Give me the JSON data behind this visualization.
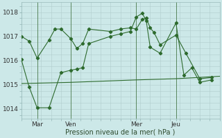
{
  "xlabel": "Pression niveau de la mer( hPa )",
  "background_color": "#cce8e8",
  "grid_color": "#b0cccc",
  "line_color": "#2d6a2d",
  "ylim": [
    1013.6,
    1018.4
  ],
  "xlim": [
    0,
    100
  ],
  "xtick_positions": [
    8,
    25,
    58,
    78
  ],
  "xtick_labels": [
    "Mar",
    "Ven",
    "Mer",
    "Jeu"
  ],
  "ytick_positions": [
    1014,
    1015,
    1016,
    1017,
    1018
  ],
  "vline_positions": [
    8,
    25,
    58,
    78
  ],
  "series1_x": [
    0,
    4,
    8,
    14,
    17,
    20,
    25,
    28,
    31,
    34,
    45,
    50,
    55,
    58,
    61,
    63,
    65,
    67,
    70,
    78,
    83,
    90,
    96
  ],
  "series1_y": [
    1017.0,
    1016.8,
    1016.1,
    1016.85,
    1017.3,
    1017.3,
    1016.9,
    1016.5,
    1016.7,
    1017.3,
    1017.2,
    1017.3,
    1017.35,
    1017.3,
    1017.7,
    1017.75,
    1017.35,
    1017.15,
    1016.65,
    1017.05,
    1016.3,
    1015.25,
    1015.3
  ],
  "series2_x": [
    0,
    4,
    8,
    14,
    20,
    25,
    28,
    31,
    34,
    45,
    50,
    55,
    58,
    61,
    63,
    65,
    70,
    78,
    82,
    86,
    90,
    96
  ],
  "series2_y": [
    1016.05,
    1014.9,
    1014.05,
    1014.05,
    1015.5,
    1015.6,
    1015.65,
    1015.7,
    1016.7,
    1017.0,
    1017.1,
    1017.2,
    1017.8,
    1017.95,
    1017.65,
    1016.55,
    1016.3,
    1017.55,
    1015.4,
    1015.7,
    1015.1,
    1015.2
  ],
  "series3_x": [
    0,
    25,
    58,
    78,
    100
  ],
  "series3_y": [
    1015.05,
    1015.1,
    1015.2,
    1015.25,
    1015.35
  ],
  "figsize": [
    3.2,
    2.0
  ],
  "dpi": 100
}
